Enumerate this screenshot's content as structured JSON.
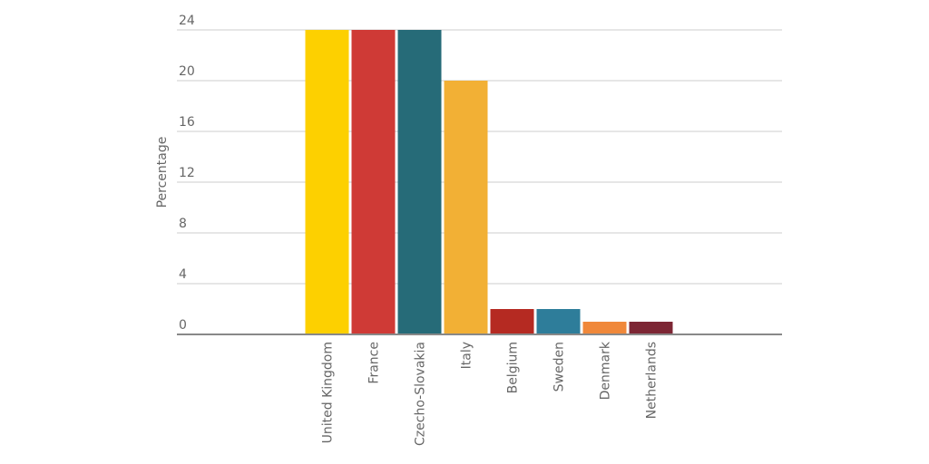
{
  "chart_data": {
    "type": "bar",
    "ylabel": "Percentage",
    "categories": [
      "United Kingdom",
      "France",
      "Czecho-Slovakia",
      "Italy",
      "Belgium",
      "Sweden",
      "Denmark",
      "Netherlands"
    ],
    "values": [
      24,
      24,
      24,
      20,
      2,
      2,
      1,
      1
    ],
    "colors": [
      "#fdd000",
      "#cf3a36",
      "#266b78",
      "#f2b035",
      "#b52a22",
      "#2e7d9a",
      "#f0883a",
      "#7d2634"
    ],
    "ylim": [
      0,
      24
    ],
    "yticks": [
      0,
      4,
      8,
      12,
      16,
      20,
      24
    ],
    "grid": true
  }
}
